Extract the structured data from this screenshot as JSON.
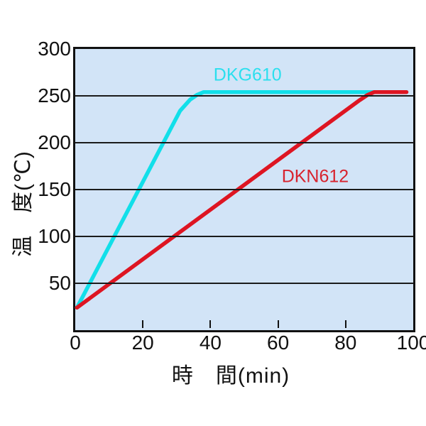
{
  "page": {
    "background_color": "#ffffff"
  },
  "chart_data": {
    "type": "line",
    "title": "",
    "xlabel": "時　間(min)",
    "ylabel": "温　度(℃)",
    "xlim": [
      0,
      100
    ],
    "ylim": [
      0,
      300
    ],
    "xticks": [
      0,
      20,
      40,
      60,
      80,
      100
    ],
    "yticks": [
      50,
      100,
      150,
      200,
      250,
      300
    ],
    "grid": "horizontal-only",
    "legend_position": "inline-labels-near-lines",
    "plot_background": "#d2e4f7",
    "grid_color": "#1b1b1b",
    "axis_color": "#111111",
    "tick_label_color": "#111111",
    "series": [
      {
        "name": "DKG610",
        "color": "#12dfe9",
        "label_color": "#2bdfee",
        "label_anchor": {
          "x": 51,
          "y": 272
        },
        "points": [
          [
            0.5,
            24
          ],
          [
            31,
            234
          ],
          [
            34,
            246
          ],
          [
            36,
            251
          ],
          [
            38,
            254
          ],
          [
            98,
            254
          ]
        ]
      },
      {
        "name": "DKN612",
        "color": "#de1522",
        "label_color": "#d8232e",
        "label_anchor": {
          "x": 71,
          "y": 164
        },
        "points": [
          [
            0.5,
            24
          ],
          [
            84,
            245
          ],
          [
            86.5,
            251
          ],
          [
            88.5,
            254
          ],
          [
            98,
            254
          ]
        ]
      }
    ]
  }
}
